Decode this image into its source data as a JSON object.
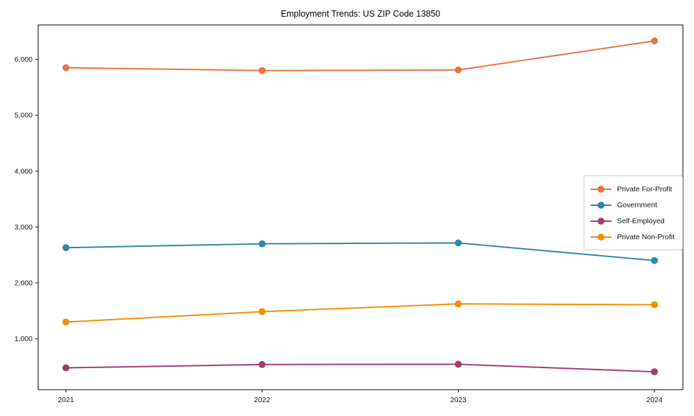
{
  "chart_data": {
    "type": "line",
    "title": "Employment Trends: US ZIP Code 13850",
    "xlabel": "",
    "ylabel": "",
    "x": [
      "2021",
      "2022",
      "2023",
      "2024"
    ],
    "series": [
      {
        "name": "Private For-Profit",
        "color": "#e8743b",
        "values": [
          5850,
          5800,
          5810,
          6330
        ]
      },
      {
        "name": "Government",
        "color": "#2e86ab",
        "values": [
          2630,
          2700,
          2715,
          2400
        ]
      },
      {
        "name": "Self-Employed",
        "color": "#a23b72",
        "values": [
          480,
          540,
          545,
          410
        ]
      },
      {
        "name": "Private Non-Profit",
        "color": "#f18f01",
        "values": [
          1300,
          1485,
          1625,
          1610
        ]
      }
    ],
    "ylim": [
      90,
      6615
    ],
    "yticks": [
      1000,
      2000,
      3000,
      4000,
      5000,
      6000
    ],
    "ytick_format": "comma",
    "grid": false,
    "legend_position": "center right",
    "marker": "circle",
    "frame_color": "#000000",
    "background_color": "#ffffff"
  }
}
